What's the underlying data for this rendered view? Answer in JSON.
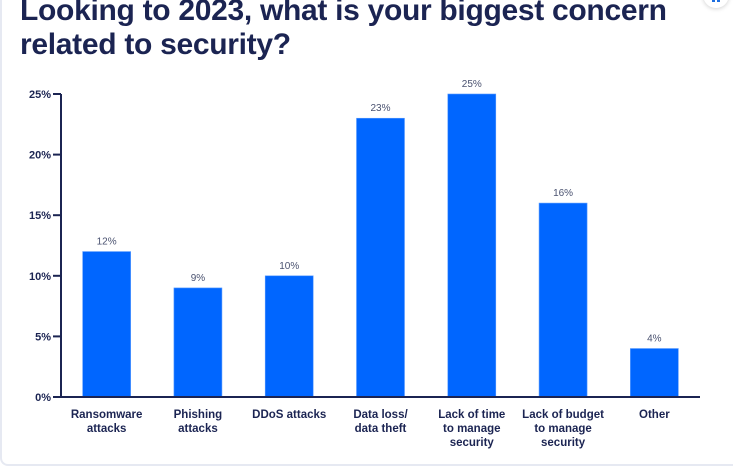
{
  "title": "Looking to 2023, what is your biggest concern related to security?",
  "colors": {
    "bar": "#0066ff",
    "axis": "#1b2452",
    "title": "#1b2452",
    "value_label": "#4a5270"
  },
  "corner_button": {
    "icon": "more-icon"
  },
  "chart_data": {
    "type": "bar",
    "title": "Looking to 2023, what is your biggest concern related to security?",
    "xlabel": "",
    "ylabel": "",
    "categories": [
      [
        "Ransomware",
        "attacks"
      ],
      [
        "Phishing",
        "attacks"
      ],
      [
        "DDoS attacks"
      ],
      [
        "Data loss/",
        "data theft"
      ],
      [
        "Lack of time",
        "to manage",
        "security"
      ],
      [
        "Lack of budget",
        "to manage",
        "security"
      ],
      [
        "Other"
      ]
    ],
    "values": [
      12,
      9,
      10,
      23,
      25,
      16,
      4
    ],
    "value_labels": [
      "12%",
      "9%",
      "10%",
      "23%",
      "25%",
      "16%",
      "4%"
    ],
    "ylim": [
      0,
      25
    ],
    "yticks": [
      0,
      5,
      10,
      15,
      20,
      25
    ],
    "ytick_labels": [
      "0%",
      "5%",
      "10%",
      "15%",
      "20%",
      "25%"
    ],
    "grid": false,
    "legend": "none"
  }
}
